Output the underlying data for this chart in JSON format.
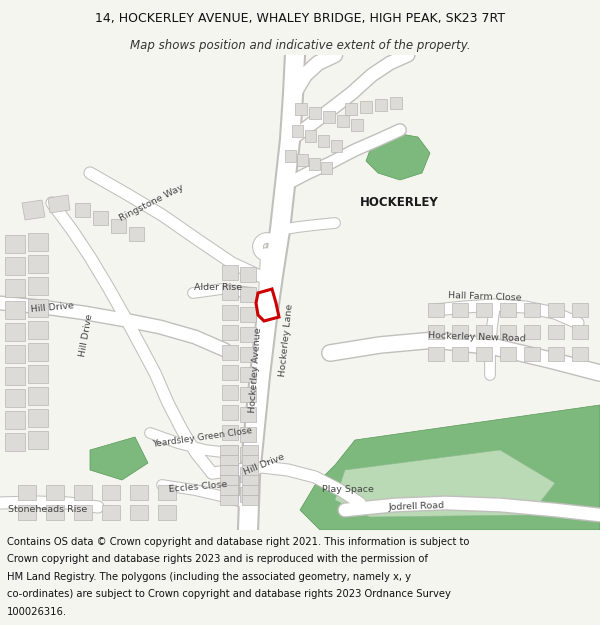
{
  "title_line1": "14, HOCKERLEY AVENUE, WHALEY BRIDGE, HIGH PEAK, SK23 7RT",
  "title_line2": "Map shows position and indicative extent of the property.",
  "title_fontsize": 9.0,
  "subtitle_fontsize": 8.5,
  "footer_text_l1": "Contains OS data © Crown copyright and database right 2021. This information is subject to",
  "footer_text_l2": "Crown copyright and database rights 2023 and is reproduced with the permission of",
  "footer_text_l3": "HM Land Registry. The polygons (including the associated geometry, namely x, y",
  "footer_text_l4": "co-ordinates) are subject to Crown copyright and database rights 2023 Ordnance Survey",
  "footer_text_l5": "100026316.",
  "footer_fontsize": 7.2,
  "bg_color": "#f5f5f0",
  "map_bg": "#f5f4f0",
  "road_color": "#ffffff",
  "road_outline": "#c0bfbc",
  "building_color": "#dddbd8",
  "building_outline": "#b8b6b3",
  "green_dark": "#7db87d",
  "green_light": "#c5dfc0",
  "highlight_color": "#cc0000",
  "text_color": "#444444",
  "label_fontsize": 6.8
}
